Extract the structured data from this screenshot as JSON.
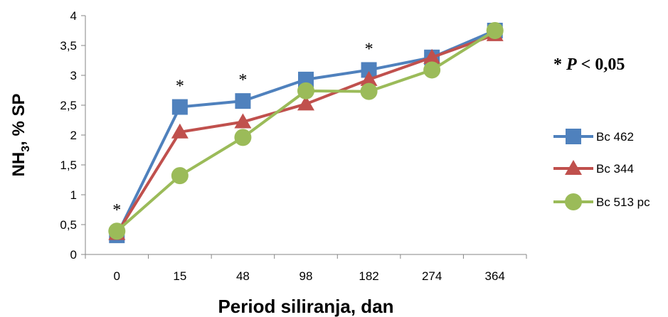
{
  "chart_data": {
    "type": "line",
    "categories": [
      "0",
      "15",
      "48",
      "98",
      "182",
      "274",
      "364"
    ],
    "xlabel": "Period siliranja, dan",
    "ylabel_main": "NH",
    "ylabel_sub": "3",
    "ylabel_rest": ", % SP",
    "ylim": [
      0,
      4
    ],
    "yticks": [
      "0",
      "0,5",
      "1",
      "1,5",
      "2",
      "2,5",
      "3",
      "3,5",
      "4"
    ],
    "grid": false,
    "legend_position": "right",
    "series": [
      {
        "name": "Bc 462",
        "color": "#4F81BD",
        "marker": "square",
        "values": [
          0.32,
          2.47,
          2.57,
          2.93,
          3.09,
          3.3,
          3.75
        ]
      },
      {
        "name": "Bc 344",
        "color": "#C0504D",
        "marker": "triangle",
        "values": [
          0.35,
          2.05,
          2.22,
          2.52,
          2.93,
          3.3,
          3.68
        ]
      },
      {
        "name": "Bc 513 pc",
        "color": "#9BBB59",
        "marker": "circle",
        "values": [
          0.39,
          1.32,
          1.96,
          2.74,
          2.73,
          3.09,
          3.75
        ]
      }
    ],
    "annotations": {
      "star": "*",
      "significant_categories": [
        "0",
        "15",
        "48",
        "182"
      ],
      "p_note_star": "* ",
      "p_note_italic": "P",
      "p_note_rest": " < 0,05"
    }
  }
}
